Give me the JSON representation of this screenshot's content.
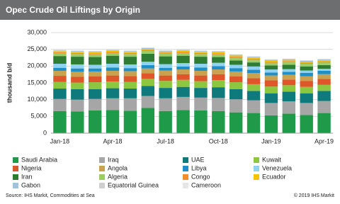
{
  "chart_data": {
    "type": "stacked_bar",
    "title": "Opec Crude Oil Liftings by Origin",
    "y_label": "thousand b/d",
    "source": "Source:  IHS Markit,  Commodities at Sea",
    "copyright": "© 2019 IHS Markit",
    "categories": [
      "Jan-18",
      null,
      null,
      "Apr-18",
      null,
      null,
      "Jul-18",
      null,
      null,
      "Oct-18",
      null,
      null,
      "Jan-19",
      null,
      null,
      "Apr-19"
    ],
    "ylim": [
      0,
      30000
    ],
    "yticks": [
      0,
      {
        "value": 5000,
        "label": "5,000"
      },
      {
        "value": 10000,
        "label": "10,000"
      },
      {
        "value": 15000,
        "label": "15,000"
      },
      {
        "value": 20000,
        "label": "20,000"
      },
      {
        "value": 25000,
        "label": "25,000"
      },
      {
        "value": 30000,
        "label": "30,000"
      }
    ],
    "grid": true,
    "series": [
      {
        "name": "Saudi Arabia",
        "color": "#1e9a48",
        "values": [
          6600,
          6500,
          6800,
          6900,
          6700,
          7500,
          6600,
          6900,
          6800,
          6600,
          6200,
          6000,
          5300,
          5800,
          5400,
          6000
        ]
      },
      {
        "name": "Iraq",
        "color": "#a6a6a6",
        "values": [
          3600,
          3500,
          3400,
          3500,
          3700,
          3600,
          3800,
          3900,
          3800,
          3900,
          3900,
          3800,
          3700,
          3700,
          3600,
          3600
        ]
      },
      {
        "name": "UAE",
        "color": "#0e7a7c",
        "values": [
          3100,
          3100,
          2900,
          3000,
          2900,
          3000,
          3100,
          3000,
          2900,
          3200,
          3000,
          2800,
          2900,
          2900,
          2900,
          3000
        ]
      },
      {
        "name": "Kuwait",
        "color": "#8dc63f",
        "values": [
          2000,
          2000,
          2100,
          2000,
          2000,
          2100,
          2100,
          2100,
          2000,
          2100,
          2100,
          2000,
          2000,
          1900,
          1900,
          1800
        ]
      },
      {
        "name": "Nigeria",
        "color": "#e0562b",
        "values": [
          1800,
          1700,
          1700,
          1800,
          1700,
          1700,
          1600,
          1700,
          1700,
          1800,
          1700,
          1800,
          1900,
          1700,
          1800,
          1800
        ]
      },
      {
        "name": "Angola",
        "color": "#c8a24e",
        "values": [
          1500,
          1500,
          1500,
          1400,
          1500,
          1400,
          1500,
          1400,
          1400,
          1400,
          1500,
          1500,
          1400,
          1400,
          1400,
          1400
        ]
      },
      {
        "name": "Libya",
        "color": "#1f8fc8",
        "values": [
          900,
          1000,
          900,
          1000,
          900,
          1000,
          800,
          900,
          1000,
          1000,
          1000,
          1000,
          900,
          900,
          1000,
          1000
        ]
      },
      {
        "name": "Venezuela",
        "color": "#8fd3f0",
        "values": [
          1200,
          1200,
          1100,
          1100,
          1100,
          1000,
          1100,
          1000,
          1100,
          1000,
          1000,
          1000,
          900,
          800,
          700,
          600
        ]
      },
      {
        "name": "Iran",
        "color": "#2e7d32",
        "values": [
          2300,
          2300,
          2300,
          2400,
          2300,
          2400,
          2300,
          2200,
          2100,
          1700,
          1300,
          1200,
          1200,
          1300,
          1200,
          1100
        ]
      },
      {
        "name": "Algeria",
        "color": "#9ccc65",
        "values": [
          800,
          800,
          800,
          800,
          800,
          800,
          800,
          800,
          800,
          800,
          800,
          800,
          800,
          800,
          800,
          800
        ]
      },
      {
        "name": "Congo",
        "color": "#f28e2b",
        "values": [
          300,
          300,
          300,
          300,
          300,
          300,
          300,
          300,
          300,
          300,
          300,
          300,
          300,
          300,
          300,
          300
        ]
      },
      {
        "name": "Ecuador",
        "color": "#f7c200",
        "values": [
          350,
          350,
          350,
          350,
          350,
          350,
          350,
          350,
          350,
          350,
          350,
          350,
          350,
          350,
          350,
          350
        ]
      },
      {
        "name": "Gabon",
        "color": "#9ec3dc",
        "values": [
          200,
          200,
          200,
          200,
          200,
          200,
          200,
          200,
          200,
          200,
          200,
          200,
          200,
          200,
          200,
          200
        ]
      },
      {
        "name": "Equatorial Guinea",
        "color": "#cfcfcf",
        "values": [
          150,
          150,
          150,
          150,
          150,
          150,
          150,
          150,
          150,
          150,
          150,
          150,
          150,
          150,
          150,
          150
        ]
      },
      {
        "name": "Cameroon",
        "color": "#e6e6e6",
        "values": [
          50,
          50,
          50,
          50,
          50,
          50,
          50,
          50,
          50,
          50,
          50,
          50,
          50,
          50,
          50,
          50
        ]
      }
    ]
  }
}
